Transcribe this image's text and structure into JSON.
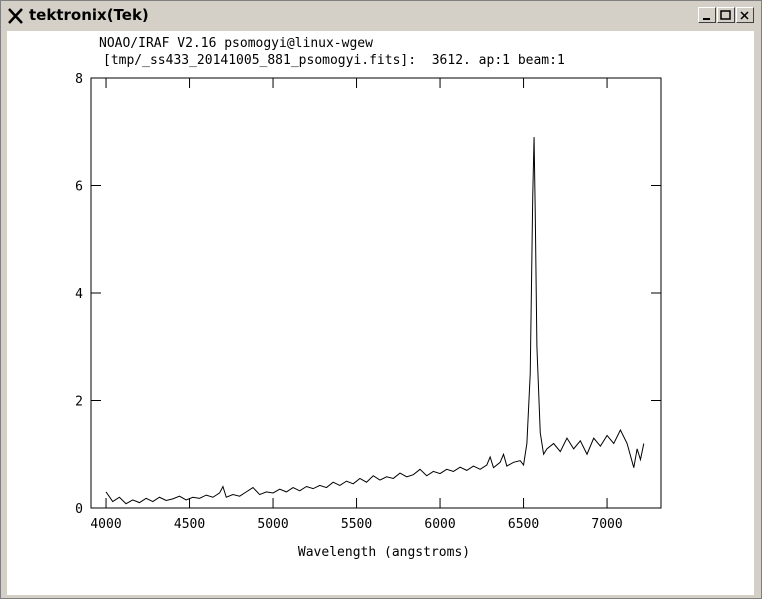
{
  "window": {
    "title": "tektronix(Tek)"
  },
  "chart_data": {
    "type": "line",
    "title": "NOAO/IRAF V2.16 psomogyi@linux-wgew",
    "subtitle": "[tmp/_ss433_20141005_881_psomogyi.fits]:  3612. ap:1 beam:1",
    "xlabel": "Wavelength (angstroms)",
    "xlim": [
      3910,
      7323
    ],
    "ylim": [
      0,
      8
    ],
    "xticks": [
      4000,
      4500,
      5000,
      5500,
      6000,
      6500,
      7000
    ],
    "yticks": [
      0,
      2,
      4,
      6,
      8
    ],
    "color": "#000000",
    "x": [
      4000,
      4040,
      4080,
      4120,
      4160,
      4200,
      4240,
      4280,
      4320,
      4360,
      4400,
      4440,
      4480,
      4520,
      4560,
      4600,
      4640,
      4680,
      4700,
      4720,
      4760,
      4800,
      4840,
      4880,
      4920,
      4960,
      5000,
      5040,
      5080,
      5120,
      5160,
      5200,
      5240,
      5280,
      5320,
      5360,
      5400,
      5440,
      5480,
      5520,
      5560,
      5600,
      5640,
      5680,
      5720,
      5760,
      5800,
      5840,
      5880,
      5920,
      5960,
      6000,
      6040,
      6080,
      6120,
      6160,
      6200,
      6240,
      6280,
      6300,
      6320,
      6360,
      6380,
      6400,
      6440,
      6480,
      6500,
      6520,
      6540,
      6555,
      6563,
      6570,
      6580,
      6600,
      6620,
      6640,
      6680,
      6720,
      6760,
      6800,
      6840,
      6880,
      6920,
      6960,
      7000,
      7040,
      7080,
      7120,
      7160,
      7180,
      7200,
      7220
    ],
    "values": [
      0.3,
      0.12,
      0.2,
      0.08,
      0.15,
      0.1,
      0.18,
      0.12,
      0.2,
      0.14,
      0.17,
      0.22,
      0.15,
      0.2,
      0.18,
      0.24,
      0.2,
      0.28,
      0.4,
      0.2,
      0.25,
      0.22,
      0.3,
      0.38,
      0.25,
      0.3,
      0.28,
      0.35,
      0.3,
      0.38,
      0.32,
      0.4,
      0.36,
      0.42,
      0.38,
      0.48,
      0.42,
      0.5,
      0.45,
      0.55,
      0.48,
      0.6,
      0.52,
      0.58,
      0.55,
      0.65,
      0.58,
      0.62,
      0.72,
      0.6,
      0.68,
      0.64,
      0.72,
      0.68,
      0.76,
      0.7,
      0.78,
      0.72,
      0.8,
      0.95,
      0.75,
      0.85,
      1.0,
      0.78,
      0.85,
      0.88,
      0.8,
      1.2,
      2.5,
      5.8,
      6.9,
      5.5,
      3.0,
      1.4,
      1.0,
      1.1,
      1.2,
      1.05,
      1.3,
      1.1,
      1.25,
      1.0,
      1.3,
      1.15,
      1.35,
      1.2,
      1.45,
      1.2,
      0.75,
      1.1,
      0.9,
      1.2
    ]
  }
}
